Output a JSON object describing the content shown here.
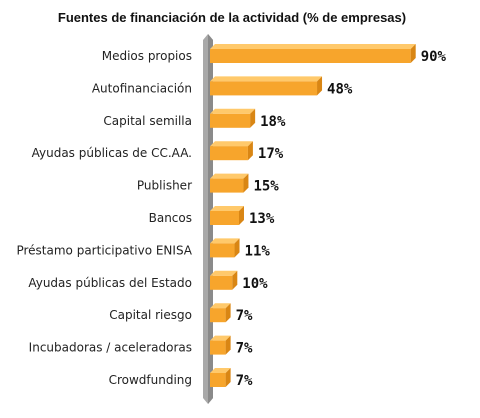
{
  "chart_data": {
    "type": "bar",
    "orientation": "horizontal",
    "title": "Fuentes de financiación de la actividad (% de empresas)",
    "categories": [
      "Medios propios",
      "Autofinanciación",
      "Capital semilla",
      "Ayudas públicas de CC.AA.",
      "Publisher",
      "Bancos",
      "Préstamo participativo ENISA",
      "Ayudas públicas del Estado",
      "Capital riesgo",
      "Incubadoras / aceleradoras",
      "Crowdfunding"
    ],
    "values": [
      90,
      48,
      18,
      17,
      15,
      13,
      11,
      10,
      7,
      7,
      7
    ],
    "value_labels": [
      "90%",
      "48%",
      "18%",
      "17%",
      "15%",
      "13%",
      "11%",
      "10%",
      "7%",
      "7%",
      "7%"
    ],
    "xlim": [
      0,
      100
    ],
    "grid": false,
    "legend": "none",
    "colors": {
      "bar_top": "#ffc96b",
      "bar_front": "#f7a52c",
      "bar_side": "#d98614",
      "axis_pillar": "#a9a9a9",
      "axis_pillar_dark": "#8a8a8a"
    }
  }
}
